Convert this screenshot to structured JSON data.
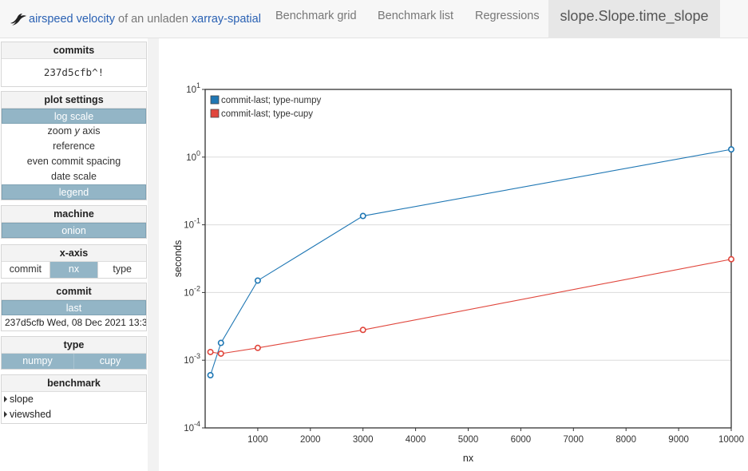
{
  "navbar": {
    "brand_part1": "airspeed velocity",
    "brand_part2": "of an unladen",
    "brand_part3": "xarray-spatial",
    "links": [
      "Benchmark grid",
      "Benchmark list",
      "Regressions"
    ],
    "active": "slope.Slope.time_slope"
  },
  "sidebar": {
    "commits": {
      "title": "commits",
      "value": "237d5cfb^!"
    },
    "plot_settings": {
      "title": "plot settings",
      "options": [
        {
          "label": "log scale",
          "active": true
        },
        {
          "label": "zoom y axis",
          "active": false
        },
        {
          "label": "reference",
          "active": false
        },
        {
          "label": "even commit spacing",
          "active": false
        },
        {
          "label": "date scale",
          "active": false
        },
        {
          "label": "legend",
          "active": true
        }
      ]
    },
    "machine": {
      "title": "machine",
      "value": "onion"
    },
    "x_axis": {
      "title": "x-axis",
      "options": [
        "commit",
        "nx",
        "type"
      ],
      "active": "nx"
    },
    "commit": {
      "title": "commit",
      "value": "last",
      "info": "237d5cfb Wed, 08 Dec 2021 13:3"
    },
    "type": {
      "title": "type",
      "options": [
        "numpy",
        "cupy"
      ]
    },
    "benchmark": {
      "title": "benchmark",
      "items": [
        "slope",
        "viewshed"
      ]
    }
  },
  "chart_data": {
    "type": "line",
    "xlabel": "nx",
    "ylabel": "seconds",
    "yscale": "log",
    "xlim": [
      0,
      10000
    ],
    "ylim_exponent": [
      -4,
      1
    ],
    "xticks": [
      "1000",
      "2000",
      "3000",
      "4000",
      "5000",
      "6000",
      "7000",
      "8000",
      "9000",
      "10000"
    ],
    "yticks": [
      {
        "base": "10",
        "exp": "1"
      },
      {
        "base": "10",
        "exp": "0"
      },
      {
        "base": "10",
        "exp": "-1"
      },
      {
        "base": "10",
        "exp": "-2"
      },
      {
        "base": "10",
        "exp": "-3"
      },
      {
        "base": "10",
        "exp": "-4"
      }
    ],
    "grid": true,
    "legend_position": "top-left",
    "series": [
      {
        "name": "commit-last; type-numpy",
        "color": "#1f77b4",
        "x": [
          100,
          300,
          1000,
          3000,
          10000
        ],
        "y": [
          0.0006,
          0.0018,
          0.015,
          0.135,
          1.3
        ]
      },
      {
        "name": "commit-last; type-cupy",
        "color": "#e0463c",
        "x": [
          100,
          300,
          1000,
          3000,
          10000
        ],
        "y": [
          0.00132,
          0.00125,
          0.00152,
          0.0028,
          0.031
        ]
      }
    ]
  }
}
